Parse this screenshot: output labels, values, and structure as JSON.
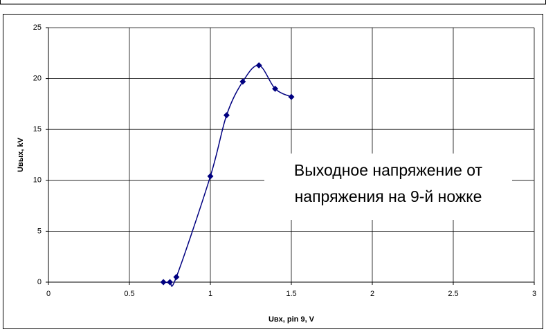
{
  "chart_data": {
    "type": "line",
    "xlabel": "Uвх, pin 9, V",
    "ylabel": "Uвых, kV",
    "annotation": [
      "Выходное напряжение от",
      "напряжения на 9-й ножке"
    ],
    "x": [
      0.71,
      0.75,
      0.79,
      1.0,
      1.1,
      1.2,
      1.3,
      1.4,
      1.5
    ],
    "series": [
      {
        "color": "#000080",
        "values": [
          0,
          0,
          0.5,
          10.4,
          16.4,
          19.7,
          21.3,
          19.0,
          18.2
        ]
      }
    ],
    "xlim": [
      0,
      3
    ],
    "xticks": [
      0,
      0.5,
      1,
      1.5,
      2,
      2.5,
      3
    ],
    "ylim": [
      0,
      25
    ],
    "yticks": [
      0,
      5,
      10,
      15,
      20,
      25
    ],
    "grid": true,
    "smooth": true,
    "marker": "diamond"
  }
}
